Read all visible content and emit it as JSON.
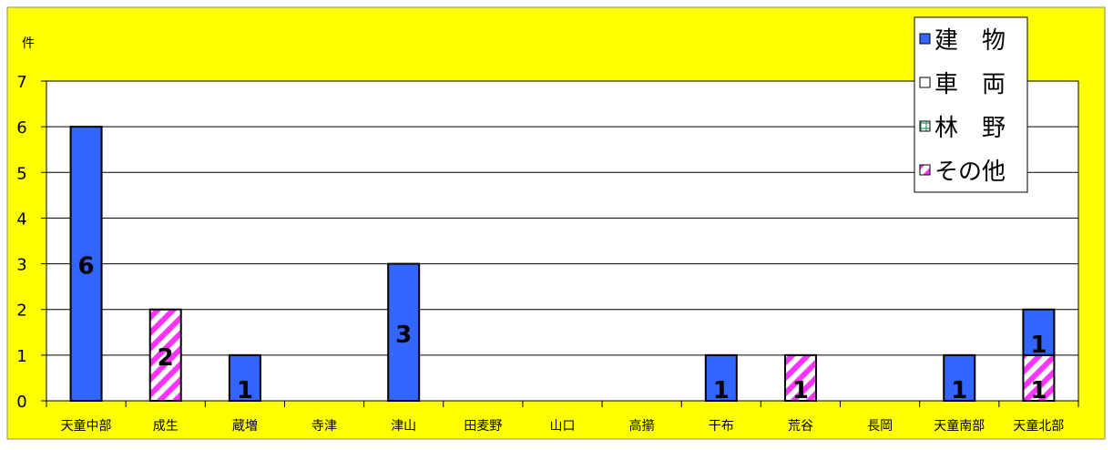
{
  "chart_data": {
    "type": "bar",
    "stacked": true,
    "unit_label": "件",
    "ylim": [
      0,
      7
    ],
    "yticks": [
      "0",
      "1",
      "2",
      "3",
      "4",
      "5",
      "6",
      "7"
    ],
    "grid": true,
    "legend_position": "top-right",
    "categories": [
      "天童中部",
      "成生",
      "蔵増",
      "寺津",
      "津山",
      "田麦野",
      "山口",
      "高擶",
      "干布",
      "荒谷",
      "長岡",
      "天童南部",
      "天童北部"
    ],
    "series": [
      {
        "name": "その他",
        "key": "other",
        "pattern": "hatch-magenta",
        "values": [
          0,
          2,
          0,
          0,
          0,
          0,
          0,
          0,
          0,
          1,
          0,
          0,
          1
        ]
      },
      {
        "name": "林　野",
        "key": "forest",
        "pattern": "grid-green",
        "values": [
          0,
          0,
          0,
          0,
          0,
          0,
          0,
          0,
          0,
          0,
          0,
          0,
          0
        ]
      },
      {
        "name": "車　両",
        "key": "vehicle",
        "pattern": "white",
        "values": [
          0,
          0,
          0,
          0,
          0,
          0,
          0,
          0,
          0,
          0,
          0,
          0,
          0
        ]
      },
      {
        "name": "建　物",
        "key": "building",
        "pattern": "solid-blue",
        "values": [
          6,
          0,
          1,
          0,
          3,
          0,
          0,
          0,
          1,
          0,
          0,
          1,
          1
        ]
      }
    ],
    "legend_order": [
      "building",
      "vehicle",
      "forest",
      "other"
    ]
  },
  "colors": {
    "background": "#ffff00",
    "plot_area": "#ffffff",
    "building": "#3366ff",
    "other": "#ff33ff",
    "forest": "#339966",
    "axis": "#000000"
  }
}
